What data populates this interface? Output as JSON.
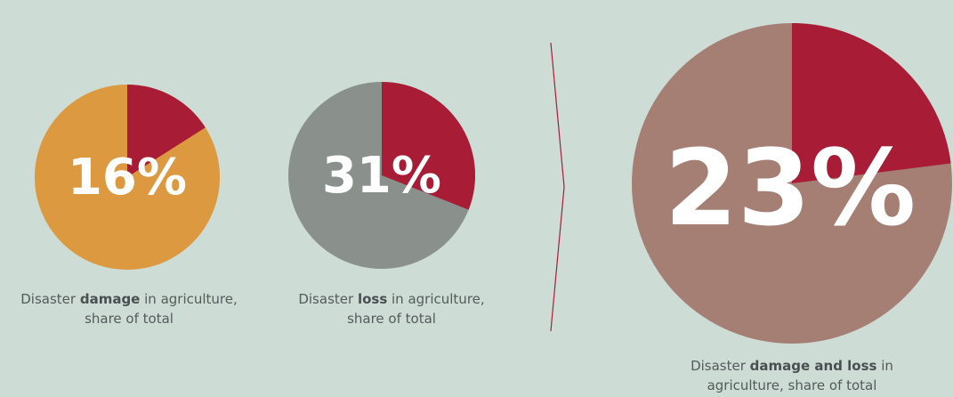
{
  "colors": {
    "background": "#cddcd5",
    "highlight": "#a81c35",
    "damage_rest": "#dc9940",
    "loss_rest": "#8a918d",
    "combined_rest": "#a57f74",
    "divider": "#a81c35"
  },
  "chart_data": [
    {
      "type": "pie",
      "label": "16%",
      "values": [
        16,
        84
      ],
      "caption": {
        "before": "Disaster ",
        "bold": "damage",
        "after": " in agriculture,",
        "line2": "share of total"
      }
    },
    {
      "type": "pie",
      "label": "31%",
      "values": [
        31,
        69
      ],
      "caption": {
        "before": "Disaster ",
        "bold": "loss",
        "after": " in agriculture,",
        "line2": "share of total"
      }
    },
    {
      "type": "pie",
      "label": "23%",
      "values": [
        23,
        77
      ],
      "caption": {
        "before": "Disaster ",
        "bold": "damage and loss",
        "after": " in",
        "line2": "agriculture, share of total"
      }
    }
  ]
}
